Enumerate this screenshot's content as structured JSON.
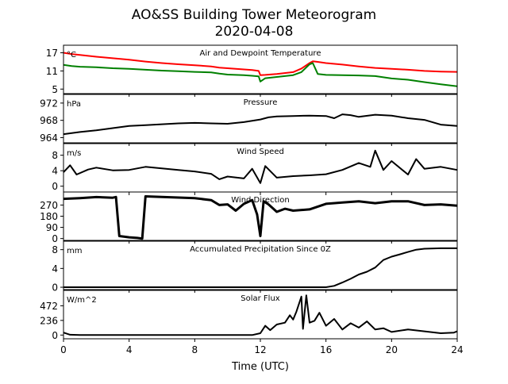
{
  "chart_data": {
    "type": "line",
    "title": "AO&SS Building Tower Meteorogram",
    "subtitle": "2020-04-08",
    "xlabel": "Time (UTC)",
    "xlim": [
      0,
      24
    ],
    "xticks": [
      0,
      4,
      8,
      12,
      16,
      20,
      24
    ],
    "panels": [
      {
        "title": "Air and Dewpoint Temperature",
        "unit": "°C",
        "ylim": [
          3.5,
          19.5
        ],
        "yticks": [
          5,
          11,
          17
        ],
        "series": [
          {
            "color": "#ff0000",
            "x": [
              0,
              0.5,
              1,
              2,
              3,
              4,
              5,
              6,
              7,
              8,
              9,
              9.5,
              10,
              11,
              11.5,
              11.9,
              12,
              12.3,
              13,
              14,
              14.5,
              15,
              15.2,
              15.5,
              16,
              17,
              18,
              19,
              20,
              21,
              22,
              23,
              24
            ],
            "y": [
              17,
              16.6,
              16.3,
              15.7,
              15.2,
              14.7,
              14.1,
              13.6,
              13.2,
              12.9,
              12.5,
              12.1,
              11.9,
              11.5,
              11.3,
              11.0,
              9.6,
              9.7,
              10.0,
              10.6,
              11.8,
              13.6,
              14.2,
              14.0,
              13.6,
              13.1,
              12.5,
              12.0,
              11.7,
              11.4,
              11.0,
              10.8,
              10.7
            ]
          },
          {
            "color": "#008000",
            "x": [
              0,
              0.5,
              1,
              2,
              3,
              4,
              5,
              6,
              7,
              8,
              9,
              9.5,
              10,
              11,
              11.5,
              11.9,
              12,
              12.3,
              13,
              14,
              14.5,
              15,
              15.2,
              15.5,
              16,
              17,
              18,
              19,
              20,
              21,
              22,
              23,
              24
            ],
            "y": [
              13,
              12.6,
              12.4,
              12.2,
              11.9,
              11.7,
              11.4,
              11.1,
              10.9,
              10.7,
              10.5,
              10.1,
              9.8,
              9.6,
              9.4,
              9.2,
              7.5,
              8.6,
              9.0,
              9.6,
              10.6,
              13.2,
              13.6,
              10.0,
              9.7,
              9.6,
              9.5,
              9.3,
              8.5,
              8.1,
              7.3,
              6.6,
              5.9
            ]
          }
        ]
      },
      {
        "title": "Pressure",
        "unit": "hPa",
        "ylim": [
          962.8,
          974.0
        ],
        "yticks": [
          964,
          968,
          972
        ],
        "series": [
          {
            "color": "#000000",
            "x": [
              0,
              1,
              2,
              3,
              4,
              5,
              6,
              7,
              8,
              9,
              10,
              11,
              12,
              12.5,
              13,
              14,
              15,
              16,
              16.5,
              17,
              17.5,
              18,
              19,
              20,
              21,
              22,
              23,
              24
            ],
            "y": [
              964.8,
              965.3,
              965.7,
              966.2,
              966.7,
              966.9,
              967.1,
              967.3,
              967.4,
              967.3,
              967.2,
              967.6,
              968.2,
              968.7,
              968.9,
              969.0,
              969.1,
              969.0,
              968.5,
              969.4,
              969.2,
              968.8,
              969.3,
              969.1,
              968.5,
              968.1,
              967.0,
              966.7
            ]
          }
        ]
      },
      {
        "title": "Wind Speed",
        "unit": "m/s",
        "ylim": [
          -1.5,
          11.0
        ],
        "yticks": [
          0,
          4,
          8
        ],
        "series": [
          {
            "color": "#000000",
            "x": [
              0,
              0.4,
              0.8,
              1.5,
              2,
              3,
              4,
              5,
              6,
              7,
              8,
              9,
              9.5,
              10,
              11,
              11.5,
              12,
              12.3,
              13,
              14,
              15,
              16,
              17,
              18,
              18.7,
              19,
              19.5,
              20,
              21,
              21.5,
              22,
              23,
              24
            ],
            "y": [
              3.6,
              5.4,
              3.0,
              4.3,
              4.8,
              4.1,
              4.2,
              5.0,
              4.6,
              4.2,
              3.8,
              3.2,
              1.8,
              2.5,
              2.0,
              4.5,
              0.8,
              5.2,
              2.2,
              2.6,
              2.8,
              3.1,
              4.2,
              6.0,
              5.0,
              9.2,
              4.2,
              6.5,
              3.0,
              7.0,
              4.5,
              5.0,
              4.2
            ]
          }
        ]
      },
      {
        "title": "Wind Direction",
        "unit": "",
        "ylim": [
          -15,
          375
        ],
        "yticks": [
          0,
          90,
          180,
          270
        ],
        "series": [
          {
            "color": "#000000",
            "x": [
              0,
              1,
              2,
              3,
              3.2,
              3.4,
              4,
              4.5,
              4.8,
              5,
              6,
              7,
              8,
              9,
              9.5,
              10,
              10.5,
              11,
              11.5,
              11.8,
              12,
              12.2,
              12.5,
              13,
              13.5,
              14,
              15,
              16,
              17,
              18,
              19,
              20,
              21,
              22,
              23,
              24
            ],
            "y": [
              320,
              326,
              334,
              329,
              335,
              20,
              10,
              5,
              0,
              340,
              335,
              330,
              325,
              310,
              270,
              275,
              225,
              280,
              310,
              195,
              20,
              300,
              275,
              215,
              240,
              225,
              235,
              280,
              290,
              300,
              285,
              300,
              300,
              270,
              275,
              265
            ]
          }
        ]
      },
      {
        "title": "Accumulated Precipitation Since 0Z",
        "unit": "mm",
        "ylim": [
          -0.5,
          9.8
        ],
        "yticks": [
          0,
          4,
          8
        ],
        "series": [
          {
            "color": "#000000",
            "x": [
              0,
              16,
              16.5,
              17,
              17.5,
              18,
              18.5,
              19,
              19.5,
              20,
              20.5,
              21,
              21.5,
              22,
              23,
              24
            ],
            "y": [
              0,
              0,
              0.3,
              1.0,
              1.8,
              2.7,
              3.3,
              4.2,
              5.8,
              6.5,
              7.0,
              7.5,
              8.0,
              8.2,
              8.3,
              8.3
            ]
          }
        ]
      },
      {
        "title": "Solar Flux",
        "unit": "W/m^2",
        "ylim": [
          -60,
          720
        ],
        "yticks": [
          0,
          236,
          472
        ],
        "series": [
          {
            "color": "#000000",
            "x": [
              0,
              0.4,
              1,
              5,
              8,
              10,
              11,
              11.5,
              12,
              12.3,
              12.6,
              13,
              13.5,
              13.8,
              14,
              14.2,
              14.5,
              14.6,
              14.8,
              15,
              15.3,
              15.6,
              16,
              16.5,
              17,
              17.5,
              18,
              18.5,
              19,
              19.5,
              20,
              21,
              22,
              23,
              23.8,
              24
            ],
            "y": [
              40,
              5,
              0,
              0,
              0,
              0,
              0,
              0,
              30,
              150,
              80,
              170,
              200,
              320,
              250,
              380,
              620,
              100,
              640,
              200,
              230,
              360,
              150,
              260,
              90,
              190,
              120,
              220,
              90,
              110,
              50,
              90,
              60,
              30,
              40,
              60
            ]
          }
        ]
      }
    ]
  }
}
